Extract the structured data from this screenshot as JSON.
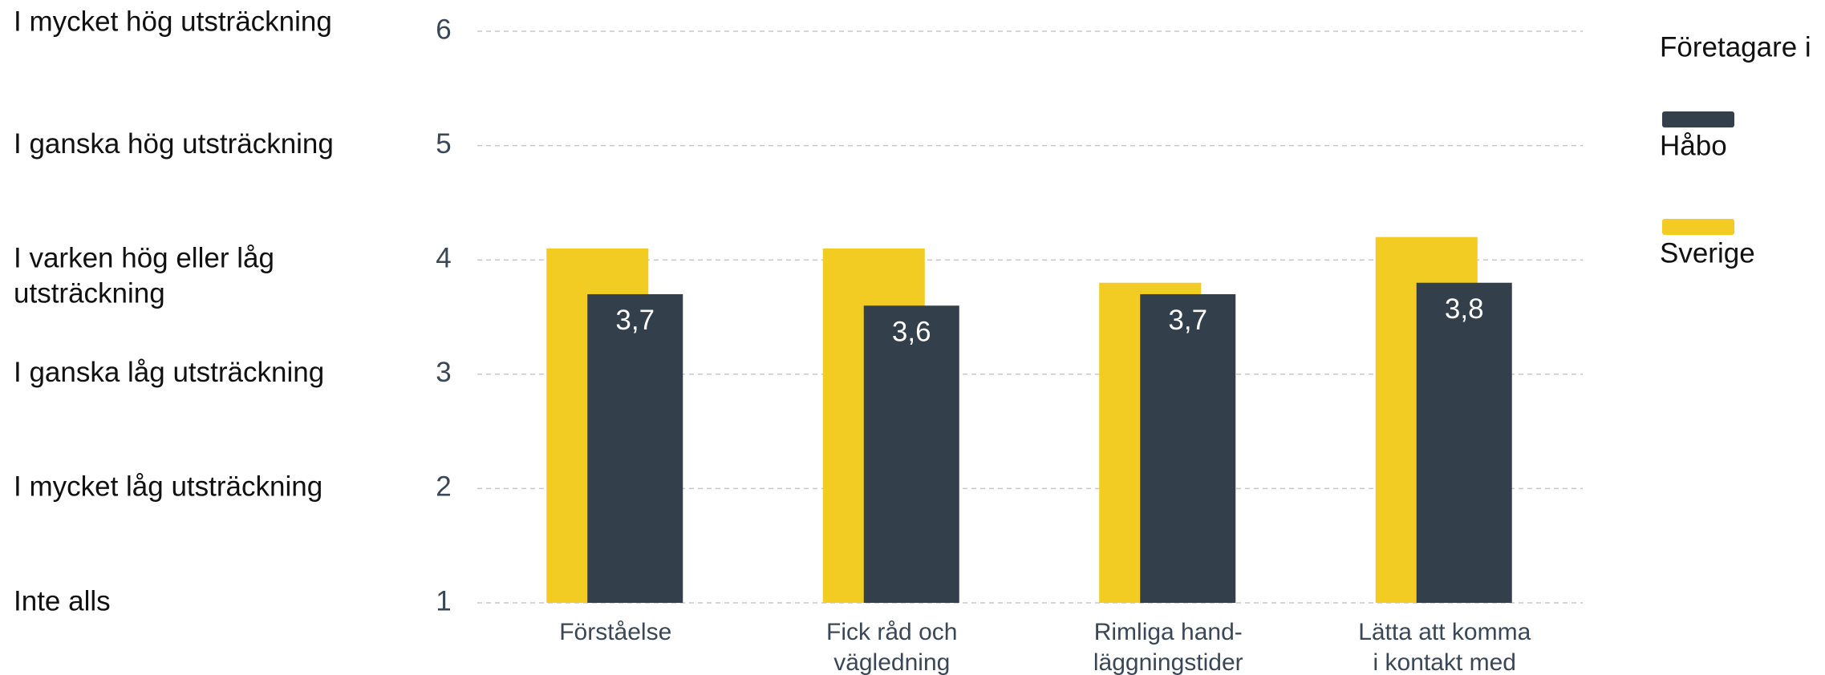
{
  "chart_data": {
    "type": "bar",
    "categories": [
      [
        "Förståelse"
      ],
      [
        "Fick råd och",
        "vägledning"
      ],
      [
        "Rimliga hand-",
        "läggningstider"
      ],
      [
        "Lätta att komma",
        "i kontakt med"
      ]
    ],
    "series": [
      {
        "name": "Sverige",
        "color": "#f2cc22",
        "values": [
          4.1,
          4.1,
          3.8,
          4.2
        ]
      },
      {
        "name": "Håbo",
        "color": "#333f4b",
        "values": [
          3.7,
          3.6,
          3.7,
          3.8
        ],
        "value_labels": [
          "3,7",
          "3,6",
          "3,7",
          "3,8"
        ]
      }
    ],
    "ylim": [
      1,
      6
    ],
    "yticks": [
      1,
      2,
      3,
      4,
      5,
      6
    ],
    "ytick_descriptions": [
      [
        "Inte alls"
      ],
      [
        "I mycket låg utsträckning"
      ],
      [
        "I ganska låg utsträckning"
      ],
      [
        "I varken hög eller låg",
        "utsträckning"
      ],
      [
        "I ganska hög utsträckning"
      ],
      [
        "I mycket hög utsträckning"
      ]
    ],
    "grid": true,
    "legend": {
      "title": "Företagare i",
      "order": [
        1,
        0
      ],
      "position": "right"
    }
  }
}
